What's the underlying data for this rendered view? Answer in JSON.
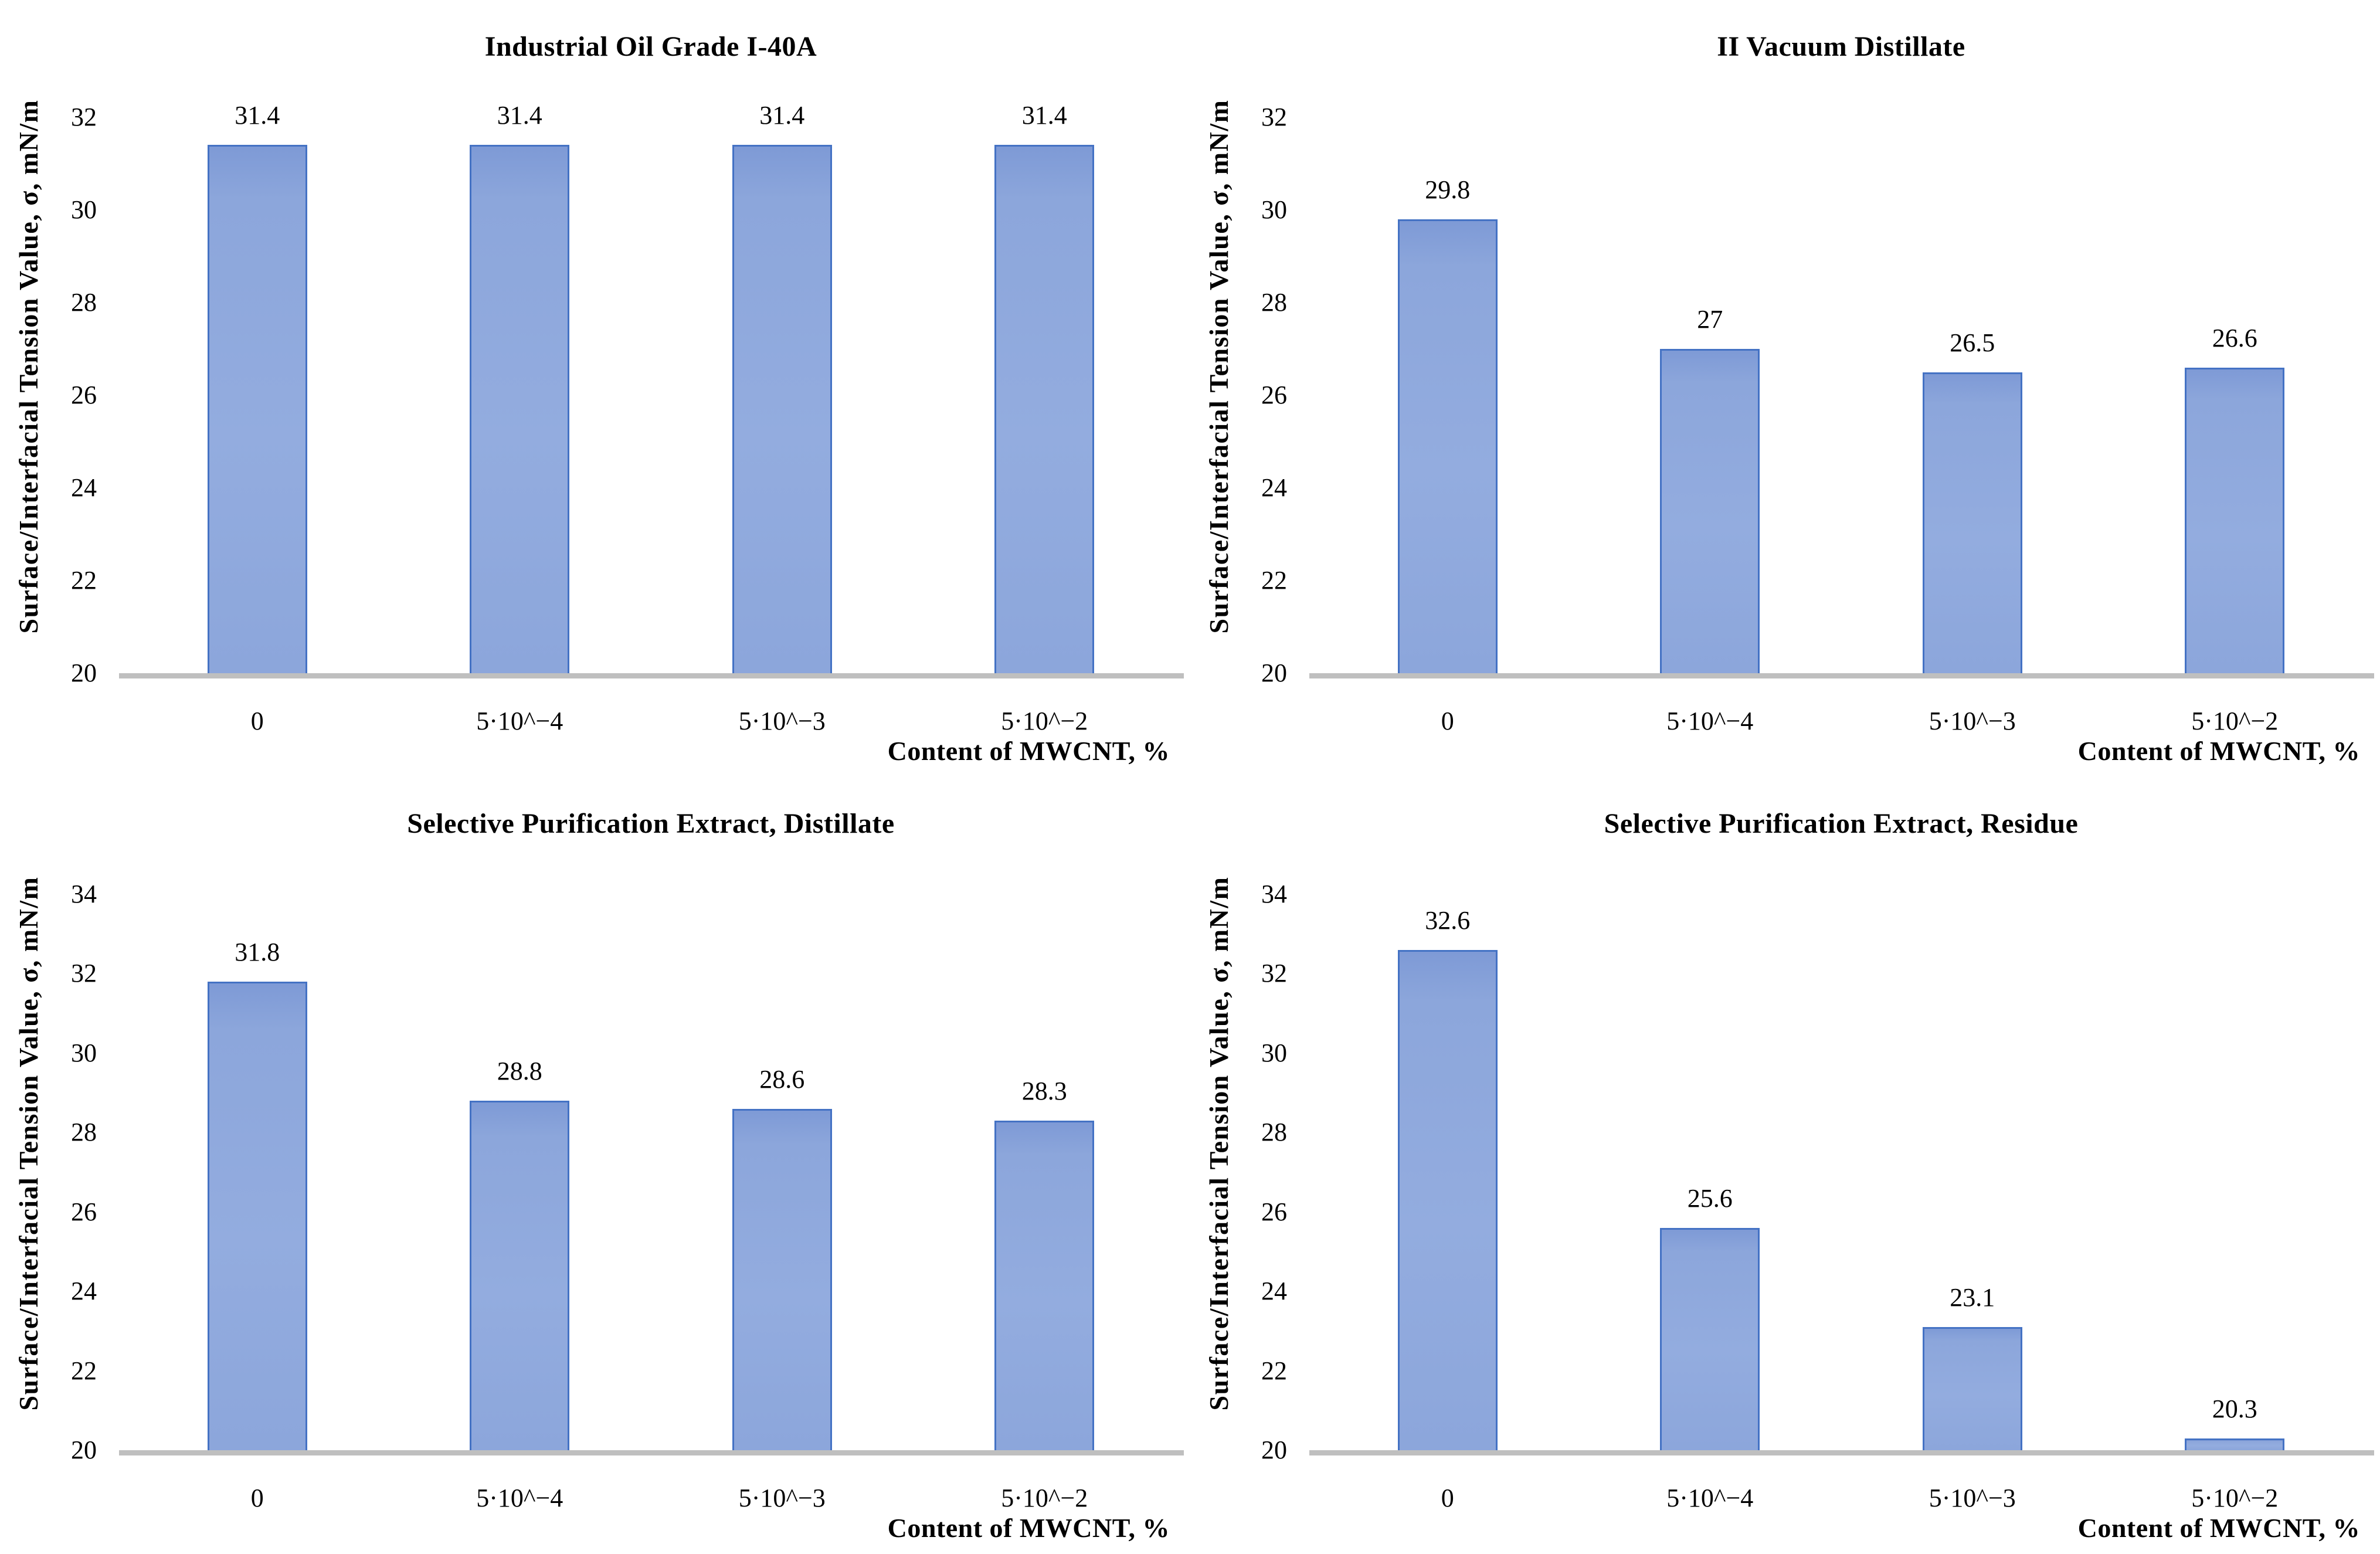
{
  "figure": {
    "background": "#ffffff",
    "text_color": "#000000"
  },
  "shared": {
    "ylabel": "Surface/Interfacial Tension Value, σ, mN/m",
    "xlabel": "Content of MWCNT, %",
    "categories": [
      "0",
      "5·10^−4",
      "5·10^−3",
      "5·10^−2"
    ],
    "bar_fill": "#8CA6DB",
    "bar_light": "#93acdf",
    "bar_edge": "#7e9ad6",
    "bar_border": "#4472C4",
    "baseline_color": "#BFBFBF"
  },
  "chart_data": [
    {
      "type": "bar",
      "title": "Industrial Oil Grade I-40A",
      "categories": [
        "0",
        "5·10^−4",
        "5·10^−3",
        "5·10^−2"
      ],
      "values": [
        31.4,
        31.4,
        31.4,
        31.4
      ],
      "data_labels": [
        "31.4",
        "31.4",
        "31.4",
        "31.4"
      ],
      "xlabel": "Content of MWCNT, %",
      "ylabel": "Surface/Interfacial Tension Value, σ, mN/m",
      "ylim": [
        20,
        32
      ],
      "ytick_step": 2,
      "yticks": [
        20,
        22,
        24,
        26,
        28,
        30,
        32
      ],
      "grid": false,
      "legend": false
    },
    {
      "type": "bar",
      "title": "II Vacuum Distillate",
      "categories": [
        "0",
        "5·10^−4",
        "5·10^−3",
        "5·10^−2"
      ],
      "values": [
        29.8,
        27,
        26.5,
        26.6
      ],
      "data_labels": [
        "29.8",
        "27",
        "26.5",
        "26.6"
      ],
      "xlabel": "Content of MWCNT, %",
      "ylabel": "Surface/Interfacial Tension Value, σ, mN/m",
      "ylim": [
        20,
        32
      ],
      "ytick_step": 2,
      "yticks": [
        20,
        22,
        24,
        26,
        28,
        30,
        32
      ],
      "grid": false,
      "legend": false
    },
    {
      "type": "bar",
      "title": "Selective Purification Extract, Distillate",
      "categories": [
        "0",
        "5·10^−4",
        "5·10^−3",
        "5·10^−2"
      ],
      "values": [
        31.8,
        28.8,
        28.6,
        28.3
      ],
      "data_labels": [
        "31.8",
        "28.8",
        "28.6",
        "28.3"
      ],
      "xlabel": "Content of MWCNT, %",
      "ylabel": "Surface/Interfacial Tension Value, σ, mN/m",
      "ylim": [
        20,
        34
      ],
      "ytick_step": 2,
      "yticks": [
        20,
        22,
        24,
        26,
        28,
        30,
        32,
        34
      ],
      "grid": false,
      "legend": false
    },
    {
      "type": "bar",
      "title": "Selective Purification Extract, Residue",
      "categories": [
        "0",
        "5·10^−4",
        "5·10^−3",
        "5·10^−2"
      ],
      "values": [
        32.6,
        25.6,
        23.1,
        20.3
      ],
      "data_labels": [
        "32.6",
        "25.6",
        "23.1",
        "20.3"
      ],
      "xlabel": "Content of MWCNT, %",
      "ylabel": "Surface/Interfacial Tension Value, σ, mN/m",
      "ylim": [
        20,
        34
      ],
      "ytick_step": 2,
      "yticks": [
        20,
        22,
        24,
        26,
        28,
        30,
        32,
        34
      ],
      "grid": false,
      "legend": false
    }
  ]
}
